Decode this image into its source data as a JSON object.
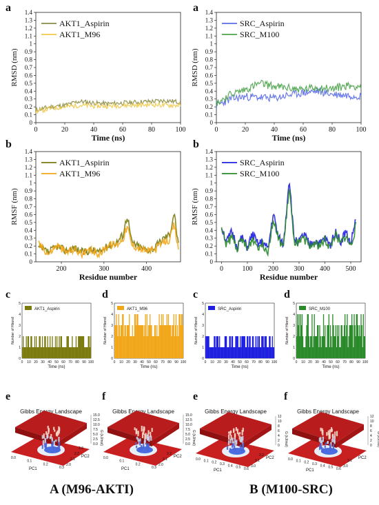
{
  "panel_letters": [
    "a",
    "a",
    "b",
    "b",
    "c",
    "d",
    "c",
    "d",
    "e",
    "f",
    "e",
    "f"
  ],
  "footer": {
    "left": "A (M96-AKTI)",
    "right": "B (M100-SRC)"
  },
  "colors": {
    "akt1_aspirin": "#7a7a0e",
    "akt1_m96": "#f2a71b",
    "src_aspirin": "#1f1fe0",
    "src_m100": "#2a8a2a",
    "akt1_aspirin_rmsd": "#8a8a40",
    "akt1_m96_rmsd": "#f0c848",
    "src_aspirin_rmsd": "#5a6be8",
    "src_m100_rmsd": "#4aa24a"
  },
  "chart_data": [
    {
      "type": "line",
      "panel": "a-left",
      "xlabel": "Time (ns)",
      "ylabel": "RMSD (nm)",
      "xlim": [
        0,
        100
      ],
      "ylim": [
        0,
        1.4
      ],
      "xticks": [
        0,
        20,
        40,
        60,
        80,
        100
      ],
      "yticks": [
        0,
        0.1,
        0.2,
        0.3,
        0.4,
        0.5,
        0.6,
        0.7,
        0.8,
        0.9,
        1.0,
        1.1,
        1.2,
        1.3,
        1.4
      ],
      "legend_position": "top-left",
      "x": [
        0,
        10,
        20,
        30,
        40,
        50,
        60,
        70,
        80,
        90,
        100
      ],
      "series": [
        {
          "name": "AKT1_Aspirin",
          "values": [
            0.16,
            0.2,
            0.22,
            0.27,
            0.25,
            0.24,
            0.25,
            0.26,
            0.27,
            0.28,
            0.26
          ]
        },
        {
          "name": "AKT1_M96",
          "values": [
            0.14,
            0.18,
            0.2,
            0.22,
            0.21,
            0.21,
            0.22,
            0.22,
            0.23,
            0.22,
            0.22
          ]
        }
      ]
    },
    {
      "type": "line",
      "panel": "a-right",
      "xlabel": "Time (ns)",
      "ylabel": "RMSD (nm)",
      "xlim": [
        0,
        100
      ],
      "ylim": [
        0,
        1.4
      ],
      "xticks": [
        0,
        20,
        40,
        60,
        80,
        100
      ],
      "yticks": [
        0,
        0.1,
        0.2,
        0.3,
        0.4,
        0.5,
        0.6,
        0.7,
        0.8,
        0.9,
        1.0,
        1.1,
        1.2,
        1.3,
        1.4
      ],
      "legend_position": "top-left",
      "x": [
        0,
        10,
        20,
        30,
        40,
        50,
        60,
        70,
        80,
        90,
        100
      ],
      "series": [
        {
          "name": "SRC_Aspirin",
          "values": [
            0.22,
            0.3,
            0.33,
            0.32,
            0.31,
            0.35,
            0.38,
            0.4,
            0.36,
            0.35,
            0.34
          ]
        },
        {
          "name": "SRC_M100",
          "values": [
            0.25,
            0.36,
            0.42,
            0.5,
            0.46,
            0.44,
            0.42,
            0.45,
            0.43,
            0.47,
            0.46
          ]
        }
      ]
    },
    {
      "type": "line",
      "panel": "b-left",
      "xlabel": "Residue number",
      "ylabel": "RMSF (nm)",
      "xlim": [
        140,
        480
      ],
      "ylim": [
        0,
        1.4
      ],
      "xticks": [
        200,
        300,
        400
      ],
      "yticks": [
        0,
        0.1,
        0.2,
        0.3,
        0.4,
        0.5,
        0.6,
        0.7,
        0.8,
        0.9,
        1.0,
        1.1,
        1.2,
        1.3,
        1.4
      ],
      "legend_position": "top-left",
      "x": [
        146,
        170,
        190,
        210,
        230,
        250,
        270,
        290,
        310,
        330,
        345,
        355,
        365,
        380,
        400,
        420,
        440,
        455,
        465,
        475
      ],
      "series": [
        {
          "name": "AKT1_Aspirin",
          "values": [
            0.18,
            0.12,
            0.2,
            0.14,
            0.18,
            0.12,
            0.15,
            0.12,
            0.2,
            0.25,
            0.35,
            0.6,
            0.25,
            0.2,
            0.15,
            0.18,
            0.3,
            0.35,
            0.64,
            0.2
          ]
        },
        {
          "name": "AKT1_M96",
          "values": [
            0.24,
            0.1,
            0.22,
            0.12,
            0.16,
            0.1,
            0.14,
            0.1,
            0.22,
            0.22,
            0.3,
            0.45,
            0.22,
            0.18,
            0.14,
            0.15,
            0.25,
            0.28,
            0.48,
            0.15
          ]
        }
      ]
    },
    {
      "type": "line",
      "panel": "b-right",
      "xlabel": "Residue number",
      "ylabel": "RMSF (nm)",
      "xlim": [
        -20,
        540
      ],
      "ylim": [
        0,
        1.4
      ],
      "xticks": [
        0,
        100,
        200,
        300,
        400,
        500
      ],
      "yticks": [
        0,
        0.1,
        0.2,
        0.3,
        0.4,
        0.5,
        0.6,
        0.7,
        0.8,
        0.9,
        1.0,
        1.1,
        1.2,
        1.3,
        1.4
      ],
      "legend_position": "top-left",
      "x": [
        0,
        20,
        40,
        60,
        80,
        100,
        120,
        140,
        160,
        180,
        200,
        220,
        240,
        262,
        280,
        300,
        320,
        340,
        360,
        380,
        400,
        420,
        440,
        460,
        480,
        500,
        520
      ],
      "series": [
        {
          "name": "SRC_Aspirin",
          "values": [
            0.45,
            0.25,
            0.38,
            0.2,
            0.3,
            0.18,
            0.35,
            0.22,
            0.25,
            0.15,
            0.62,
            0.3,
            0.22,
            1.07,
            0.3,
            0.25,
            0.35,
            0.2,
            0.28,
            0.22,
            0.3,
            0.2,
            0.4,
            0.25,
            0.38,
            0.22,
            0.56
          ]
        },
        {
          "name": "SRC_M100",
          "values": [
            0.4,
            0.22,
            0.32,
            0.18,
            0.28,
            0.15,
            0.3,
            0.2,
            0.22,
            0.14,
            0.55,
            0.28,
            0.2,
            0.95,
            0.26,
            0.22,
            0.3,
            0.18,
            0.25,
            0.2,
            0.28,
            0.18,
            0.35,
            0.22,
            0.33,
            0.2,
            0.45
          ]
        }
      ]
    },
    {
      "type": "bar",
      "panel": "c-left",
      "name": "AKT1_Aspirin",
      "xlabel": "Time (ns)",
      "ylabel": "Number of Hbond",
      "xlim": [
        0,
        100
      ],
      "ylim": [
        0,
        5
      ],
      "xticks": [
        0,
        10,
        20,
        30,
        40,
        50,
        60,
        70,
        80,
        90,
        100
      ],
      "yticks": [
        0,
        1,
        2,
        3,
        4,
        5
      ],
      "values_summary": "mostly 1-2 hydrogen bonds"
    },
    {
      "type": "bar",
      "panel": "d-left",
      "name": "AKT1_M96",
      "xlabel": "Time (ns)",
      "ylabel": "Number of Hbond",
      "xlim": [
        0,
        100
      ],
      "ylim": [
        0,
        5
      ],
      "xticks": [
        0,
        10,
        20,
        30,
        40,
        50,
        60,
        70,
        80,
        90,
        100
      ],
      "yticks": [
        0,
        1,
        2,
        3,
        4,
        5
      ],
      "values_summary": "mostly 2-4 hydrogen bonds"
    },
    {
      "type": "bar",
      "panel": "c-right",
      "name": "SRC_Aspirin",
      "xlabel": "Time (ns)",
      "ylabel": "Number of Hbond",
      "xlim": [
        0,
        100
      ],
      "ylim": [
        0,
        5
      ],
      "xticks": [
        0,
        10,
        20,
        30,
        40,
        50,
        60,
        70,
        80,
        90,
        100
      ],
      "yticks": [
        0,
        1,
        2,
        3,
        4,
        5
      ],
      "values_summary": "mostly 1-2 hydrogen bonds"
    },
    {
      "type": "bar",
      "panel": "d-right",
      "name": "SRC_M100",
      "xlabel": "Time (ns)",
      "ylabel": "Number of Hbond",
      "xlim": [
        0,
        100
      ],
      "ylim": [
        0,
        5
      ],
      "xticks": [
        0,
        10,
        20,
        30,
        40,
        50,
        60,
        70,
        80,
        90,
        100
      ],
      "yticks": [
        0,
        1,
        2,
        3,
        4,
        5
      ],
      "values_summary": "1-4 hydrogen bonds"
    },
    {
      "type": "heatmap",
      "panel": "e-left",
      "title": "Gibbs Energy Landscape",
      "xlabel": "PC1",
      "ylabel": "PC2",
      "zlabel": "G (kJ/mol)",
      "x_ticks": [
        "0.0",
        "0.1",
        "0.2",
        "0.3"
      ],
      "y_ticks": [
        "2.0",
        "2.1",
        "2.2",
        "2.3"
      ],
      "z_ticks": [
        "0.0",
        "2.5",
        "5.0",
        "7.5",
        "10.0",
        "12.5",
        "15.0"
      ]
    },
    {
      "type": "heatmap",
      "panel": "f-left",
      "title": "Gibbs Energy Landscape",
      "xlabel": "PC1",
      "ylabel": "PC2",
      "zlabel": "G (kJ/mol)",
      "x_ticks": [
        "0.0",
        "0.1",
        "0.2",
        "0.3"
      ],
      "y_ticks": [
        "2.0",
        "2.1",
        "2.2"
      ],
      "z_ticks": [
        "0.0",
        "2.5",
        "5.0",
        "7.5",
        "10.0",
        "12.5",
        "15.0"
      ]
    },
    {
      "type": "heatmap",
      "panel": "e-right",
      "title": "Gibbs Energy Landscape",
      "xlabel": "PC1",
      "ylabel": "PC2",
      "zlabel": "G (kJ/mol)",
      "x_ticks": [
        "0.0",
        "0.1",
        "0.2",
        "0.3",
        "0.4",
        "0.5",
        "0.6"
      ],
      "y_ticks": [
        "3.0",
        "3.1",
        "3.2"
      ],
      "z_ticks": [
        "0",
        "2",
        "4",
        "6",
        "8",
        "10",
        "12"
      ]
    },
    {
      "type": "heatmap",
      "panel": "f-right",
      "title": "Gibbs Energy Landscape",
      "xlabel": "PC1",
      "ylabel": "PC2",
      "zlabel": "G (kJ/mol)",
      "x_ticks": [
        "0.0",
        "0.1",
        "0.2",
        "0.3",
        "0.4",
        "0.5",
        "0.6"
      ],
      "y_ticks": [
        "3.0",
        "3.1"
      ],
      "z_ticks": [
        "0",
        "2",
        "4",
        "6",
        "8",
        "10",
        "12"
      ]
    }
  ]
}
